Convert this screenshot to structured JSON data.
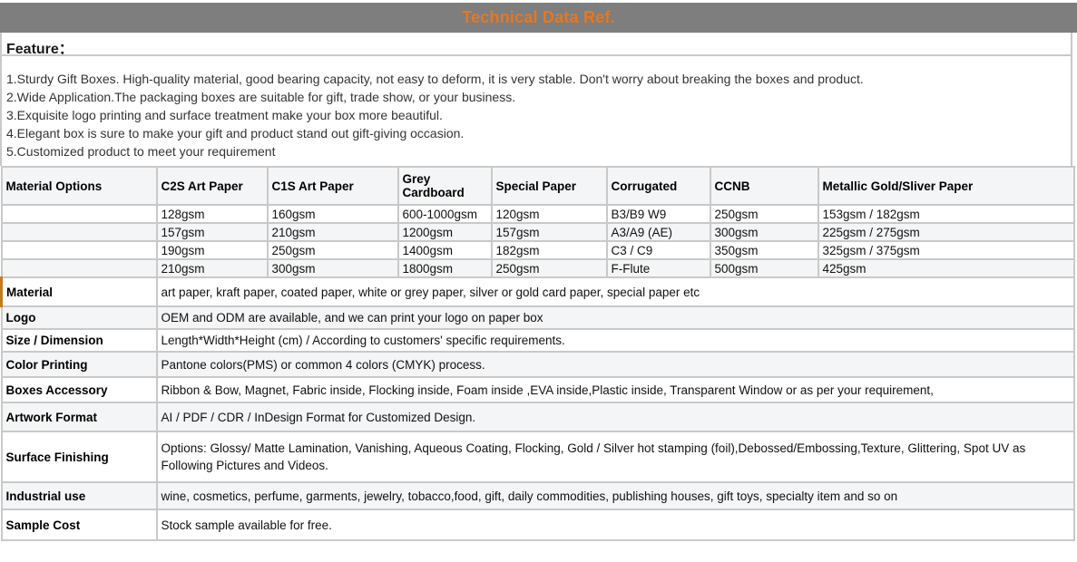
{
  "page": {
    "title": "Technical Data Ref."
  },
  "colors": {
    "bar_bg": "#7e7e7e",
    "title": "#e6781e",
    "stripe": "#f4f5f6",
    "border": "#c9c9c9",
    "accent": "#c8791e"
  },
  "feature": {
    "heading": "Feature：",
    "items": [
      "1.Sturdy Gift Boxes. High-quality material, good bearing capacity, not easy to deform, it is very stable. Don't worry about breaking the boxes and product.",
      "2.Wide Application.The packaging boxes are suitable for gift, trade show, or your business.",
      "3.Exquisite logo printing and surface treatment make your box more beautiful.",
      "4.Elegant box is sure to make your gift and product stand out gift-giving occasion.",
      "5.Customized product to meet your requirement"
    ]
  },
  "materials_table": {
    "columns": [
      "Material Options",
      "C2S Art Paper",
      "C1S Art Paper",
      "Grey Cardboard",
      "Special Paper",
      "Corrugated",
      "CCNB",
      "Metallic Gold/Sliver Paper"
    ],
    "rows": [
      [
        "",
        "128gsm",
        "160gsm",
        "600-1000gsm",
        "120gsm",
        "B3/B9 W9",
        "250gsm",
        "153gsm / 182gsm"
      ],
      [
        "",
        "157gsm",
        "210gsm",
        "1200gsm",
        "157gsm",
        "A3/A9 (AE)",
        "300gsm",
        "225gsm / 275gsm"
      ],
      [
        "",
        "190gsm",
        "250gsm",
        "1400gsm",
        "182gsm",
        "C3 / C9",
        "350gsm",
        "325gsm / 375gsm"
      ],
      [
        "",
        "210gsm",
        "300gsm",
        "1800gsm",
        "250gsm",
        "F-Flute",
        "500gsm",
        "425gsm"
      ]
    ]
  },
  "spec_rows": [
    {
      "label": "Material",
      "value": "art paper, kraft paper, coated paper, white or grey paper, silver or gold card paper, special paper etc"
    },
    {
      "label": "Logo",
      "value": "OEM and ODM are available, and we can print your logo on paper box"
    },
    {
      "label": "Size / Dimension",
      "value": "Length*Width*Height (cm) / According to customers' specific requirements."
    },
    {
      "label": "Color Printing",
      "value": "Pantone colors(PMS) or common 4 colors (CMYK) process."
    },
    {
      "label": "Boxes Accessory",
      "value": "Ribbon & Bow, Magnet, Fabric inside, Flocking inside, Foam inside ,EVA inside,Plastic inside, Transparent Window or as per your requirement,"
    },
    {
      "label": "Artwork Format",
      "value": "AI / PDF / CDR / InDesign Format for Customized Design."
    },
    {
      "label": "Surface Finishing",
      "value": "Options: Glossy/ Matte Lamination, Vanishing, Aqueous Coating, Flocking, Gold / Silver hot stamping (foil),Debossed/Embossing,Texture, Glittering, Spot UV as Following Pictures and Videos."
    },
    {
      "label": "Industrial use",
      "value": "wine, cosmetics, perfume, garments, jewelry, tobacco,food, gift, daily commodities, publishing houses, gift toys, specialty item and so on"
    },
    {
      "label": "Sample Cost",
      "value": "Stock sample available for free."
    }
  ]
}
